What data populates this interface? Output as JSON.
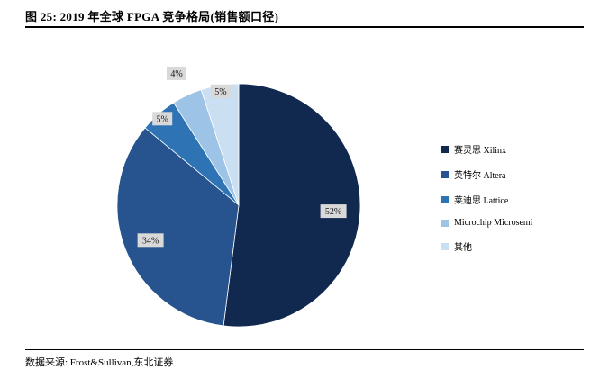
{
  "header": {
    "title": "图 25: 2019 年全球 FPGA 竞争格局(销售额口径)"
  },
  "chart_data": {
    "type": "pie",
    "title": "2019 年全球 FPGA 竞争格局(销售额口径)",
    "labels": [
      "赛灵思 Xilinx",
      "英特尔 Altera",
      "莱迪思 Lattice",
      "Microchip Microsemi",
      "其他"
    ],
    "values": [
      52,
      34,
      5,
      4,
      5
    ],
    "unit": "%",
    "colors": [
      "#11294f",
      "#27538e",
      "#2e74b5",
      "#9dc3e6",
      "#cbdff2"
    ],
    "slice_label_bg": "#d9d9d9",
    "label_radius": [
      0.78,
      0.78,
      0.95,
      1.2,
      0.95
    ],
    "start_angle_deg": 0,
    "direction": "clockwise",
    "legend_position": "right"
  },
  "footer": {
    "source": "数据来源: Frost&Sullivan,东北证券"
  }
}
